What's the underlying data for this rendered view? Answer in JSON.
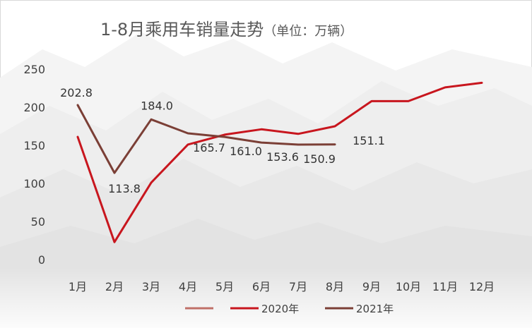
{
  "chart_data": {
    "type": "line",
    "title": "1-8月乘用车销量走势",
    "title_unit": "（单位：万辆）",
    "categories": [
      "1月",
      "2月",
      "3月",
      "4月",
      "5月",
      "6月",
      "7月",
      "8月",
      "9月",
      "10月",
      "11月",
      "12月"
    ],
    "ylim": [
      0,
      250
    ],
    "yticks": [
      0,
      50,
      100,
      150,
      200,
      250
    ],
    "grid": false,
    "legend_position": "bottom",
    "series": [
      {
        "name": "2020年",
        "color": "#c8161e",
        "values": [
          161,
          23,
          101,
          151,
          164,
          171,
          165,
          175,
          208,
          208,
          226,
          232
        ],
        "labels": [
          null,
          null,
          null,
          null,
          null,
          null,
          null,
          null,
          null,
          null,
          null,
          null
        ]
      },
      {
        "name": "2021年",
        "color": "#7b3f36",
        "values": [
          202.8,
          113.8,
          184.0,
          165.7,
          161.0,
          153.6,
          150.9,
          151.1,
          null,
          null,
          null,
          null
        ],
        "labels": [
          "202.8",
          "113.8",
          "184.0",
          "165.7",
          "161.0",
          "153.6",
          "150.9",
          "151.1",
          null,
          null,
          null,
          null
        ]
      }
    ],
    "legend": [
      {
        "name": "",
        "color": "#c07068"
      },
      {
        "name": "2020年",
        "color": "#c8161e"
      },
      {
        "name": "2021年",
        "color": "#7b3f36"
      }
    ]
  }
}
